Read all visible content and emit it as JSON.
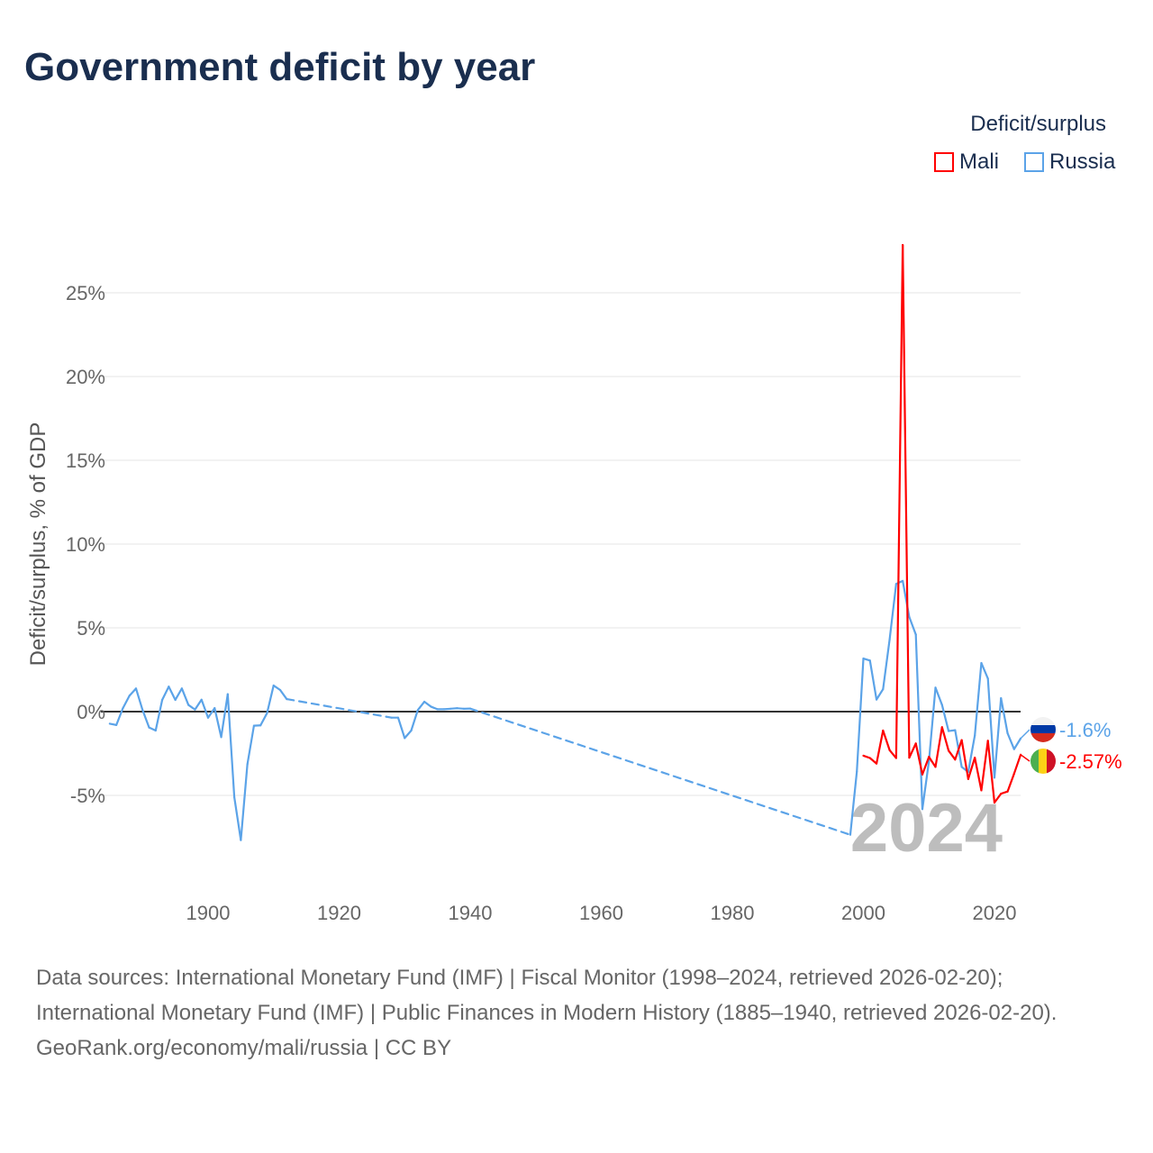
{
  "title": "Government deficit by year",
  "legend": {
    "title": "Deficit/surplus",
    "items": [
      {
        "name": "Mali",
        "color": "#ff0000"
      },
      {
        "name": "Russia",
        "color": "#5ba3e8"
      }
    ]
  },
  "year_watermark": "2024",
  "footer": {
    "sources": "Data sources: International Monetary Fund (IMF) | Fiscal Monitor (1998–2024, retrieved 2026-02-20); International Monetary Fund (IMF) | Public Finances in Modern History (1885–1940, retrieved 2026-02-20).",
    "credit": "GeoRank.org/economy/mali/russia | CC BY"
  },
  "chart_data": {
    "type": "line",
    "title": "Government deficit by year",
    "xlabel": "",
    "ylabel": "Deficit/surplus, % of GDP",
    "xlim": [
      1885,
      2024
    ],
    "ylim": [
      -8,
      28
    ],
    "x_ticks": [
      1900,
      1920,
      1940,
      1960,
      1980,
      2000,
      2020
    ],
    "y_ticks": [
      {
        "v": 25,
        "label": "25%"
      },
      {
        "v": 20,
        "label": "20%"
      },
      {
        "v": 15,
        "label": "15%"
      },
      {
        "v": 10,
        "label": "10%"
      },
      {
        "v": 5,
        "label": "5%"
      },
      {
        "v": 0,
        "label": "0%"
      },
      {
        "v": -5,
        "label": "-5%"
      }
    ],
    "grid": true,
    "legend_position": "top-right",
    "series": [
      {
        "name": "Russia",
        "color": "#5ba3e8",
        "end_label": "-1.6%",
        "flag": "russia",
        "points": [
          [
            1885,
            -0.72
          ],
          [
            1886,
            -0.8
          ],
          [
            1887,
            0.2
          ],
          [
            1888,
            0.95
          ],
          [
            1889,
            1.38
          ],
          [
            1890,
            0.1
          ],
          [
            1891,
            -0.95
          ],
          [
            1892,
            -1.13
          ],
          [
            1893,
            0.7
          ],
          [
            1894,
            1.49
          ],
          [
            1895,
            0.7
          ],
          [
            1896,
            1.38
          ],
          [
            1897,
            0.4
          ],
          [
            1898,
            0.12
          ],
          [
            1899,
            0.71
          ],
          [
            1900,
            -0.36
          ],
          [
            1901,
            0.21
          ],
          [
            1902,
            -1.52
          ],
          [
            1903,
            1.04
          ],
          [
            1904,
            -5.1
          ],
          [
            1905,
            -7.67
          ],
          [
            1906,
            -3.14
          ],
          [
            1907,
            -0.84
          ],
          [
            1908,
            -0.82
          ],
          [
            1909,
            -0.09
          ],
          [
            1910,
            1.56
          ],
          [
            1911,
            1.29
          ],
          [
            1912,
            0.75
          ],
          [
            1928,
            -0.36
          ],
          [
            1929,
            -0.36
          ],
          [
            1930,
            -1.58
          ],
          [
            1931,
            -1.13
          ],
          [
            1932,
            0.09
          ],
          [
            1933,
            0.59
          ],
          [
            1934,
            0.3
          ],
          [
            1935,
            0.14
          ],
          [
            1936,
            0.14
          ],
          [
            1937,
            0.17
          ],
          [
            1938,
            0.2
          ],
          [
            1939,
            0.17
          ],
          [
            1940,
            0.18
          ],
          [
            1998,
            -7.35
          ],
          [
            1999,
            -3.58
          ],
          [
            2000,
            3.17
          ],
          [
            2001,
            3.05
          ],
          [
            2002,
            0.72
          ],
          [
            2003,
            1.34
          ],
          [
            2004,
            4.3
          ],
          [
            2005,
            7.62
          ],
          [
            2006,
            7.8
          ],
          [
            2007,
            5.65
          ],
          [
            2008,
            4.6
          ],
          [
            2009,
            -5.82
          ],
          [
            2010,
            -2.96
          ],
          [
            2011,
            1.43
          ],
          [
            2012,
            0.4
          ],
          [
            2013,
            -1.16
          ],
          [
            2014,
            -1.11
          ],
          [
            2015,
            -3.3
          ],
          [
            2016,
            -3.6
          ],
          [
            2017,
            -1.43
          ],
          [
            2018,
            2.9
          ],
          [
            2019,
            1.97
          ],
          [
            2020,
            -3.94
          ],
          [
            2021,
            0.8
          ],
          [
            2022,
            -1.29
          ],
          [
            2023,
            -2.24
          ],
          [
            2024,
            -1.6
          ]
        ]
      },
      {
        "name": "Mali",
        "color": "#ff0000",
        "end_label": "-2.57%",
        "flag": "mali",
        "points": [
          [
            2000,
            -2.63
          ],
          [
            2001,
            -2.77
          ],
          [
            2002,
            -3.1
          ],
          [
            2003,
            -1.13
          ],
          [
            2004,
            -2.3
          ],
          [
            2005,
            -2.77
          ],
          [
            2006,
            27.85
          ],
          [
            2007,
            -2.75
          ],
          [
            2008,
            -1.9
          ],
          [
            2009,
            -3.75
          ],
          [
            2010,
            -2.7
          ],
          [
            2011,
            -3.3
          ],
          [
            2012,
            -0.93
          ],
          [
            2013,
            -2.33
          ],
          [
            2014,
            -2.86
          ],
          [
            2015,
            -1.7
          ],
          [
            2016,
            -4.02
          ],
          [
            2017,
            -2.75
          ],
          [
            2018,
            -4.7
          ],
          [
            2019,
            -1.74
          ],
          [
            2020,
            -5.43
          ],
          [
            2021,
            -4.9
          ],
          [
            2022,
            -4.77
          ],
          [
            2023,
            -3.7
          ],
          [
            2024,
            -2.57
          ]
        ]
      }
    ]
  }
}
